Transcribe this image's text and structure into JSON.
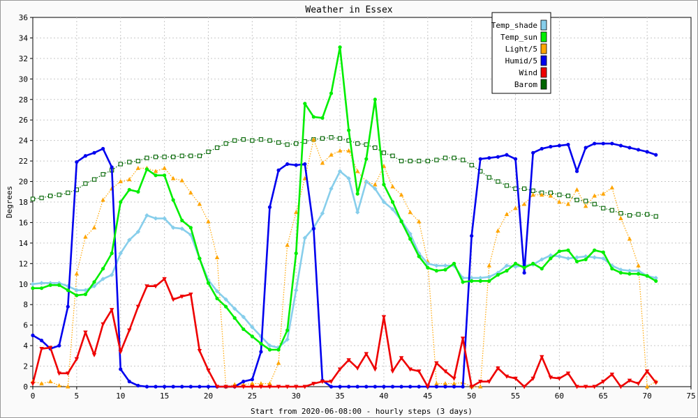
{
  "chart_data": {
    "type": "line",
    "title": "Weather in Essex",
    "xlabel": "Start from 2020-06-08:00 - hourly steps (3 days)",
    "ylabel": "Degrees",
    "xlim": [
      0,
      75
    ],
    "ylim": [
      0,
      36
    ],
    "xticks": [
      0,
      5,
      10,
      15,
      20,
      25,
      30,
      35,
      40,
      45,
      50,
      55,
      60,
      65,
      70,
      75
    ],
    "yticks": [
      0,
      2,
      4,
      6,
      8,
      10,
      12,
      14,
      16,
      18,
      20,
      22,
      24,
      26,
      28,
      30,
      32,
      34,
      36
    ],
    "grid": true,
    "legend_position": "top-right",
    "series": [
      {
        "name": "Temp_shade",
        "color": "#87ceeb",
        "marker": "diamond",
        "line": "solid",
        "values": [
          10.0,
          10.1,
          10.1,
          10.1,
          9.8,
          9.4,
          9.4,
          9.8,
          10.5,
          10.9,
          13.0,
          14.3,
          15.1,
          16.7,
          16.4,
          16.4,
          15.5,
          15.4,
          14.8,
          12.5,
          10.4,
          9.3,
          8.5,
          7.6,
          6.8,
          5.8,
          4.9,
          4.0,
          3.8,
          4.6,
          9.4,
          14.5,
          15.5,
          16.9,
          19.3,
          21.0,
          20.3,
          17.0,
          20.0,
          19.3,
          18.0,
          17.3,
          16.2,
          14.9,
          13.0,
          12.0,
          11.8,
          11.8,
          11.8,
          10.6,
          10.6,
          10.6,
          10.7,
          11.1,
          11.8,
          11.7,
          11.8,
          11.9,
          12.4,
          12.8,
          12.7,
          12.5,
          12.6,
          12.7,
          12.6,
          12.5,
          11.8,
          11.4,
          11.3,
          11.3,
          10.8,
          10.6
        ]
      },
      {
        "name": "Temp_sun",
        "color": "#00ee00",
        "marker": "circle",
        "line": "solid",
        "values": [
          9.6,
          9.6,
          9.9,
          9.9,
          9.4,
          8.9,
          9.0,
          10.2,
          11.5,
          13.0,
          18.0,
          19.2,
          19.0,
          21.2,
          20.6,
          20.6,
          18.2,
          16.2,
          15.5,
          12.5,
          10.1,
          8.6,
          7.8,
          6.7,
          5.6,
          4.9,
          4.2,
          3.6,
          3.6,
          5.5,
          13.0,
          27.6,
          26.3,
          26.2,
          28.6,
          33.1,
          25.0,
          18.8,
          22.2,
          28.0,
          19.7,
          18.0,
          16.1,
          14.4,
          12.7,
          11.6,
          11.3,
          11.4,
          12.0,
          10.2,
          10.3,
          10.3,
          10.3,
          10.9,
          11.3,
          12.0,
          11.6,
          12.0,
          11.5,
          12.5,
          13.2,
          13.3,
          12.2,
          12.4,
          13.3,
          13.1,
          11.5,
          11.1,
          11.0,
          11.0,
          10.8,
          10.3
        ]
      },
      {
        "name": "Light/5",
        "color": "#ffa500",
        "marker": "triangle",
        "line": "dotted",
        "values": [
          0.5,
          0.3,
          0.5,
          0.1,
          0.0,
          11.0,
          14.6,
          15.5,
          18.2,
          19.3,
          20.0,
          20.2,
          21.3,
          21.3,
          21.0,
          21.3,
          20.3,
          20.1,
          18.9,
          17.8,
          16.1,
          12.6,
          0.0,
          0.2,
          0.2,
          0.3,
          0.3,
          0.3,
          2.3,
          13.8,
          17.0,
          20.3,
          24.1,
          21.8,
          22.6,
          23.0,
          23.0,
          21.0,
          20.0,
          19.7,
          21.5,
          19.5,
          18.7,
          17.0,
          16.1,
          12.2,
          0.3,
          0.3,
          0.3,
          0.4,
          0.0,
          0.0,
          11.8,
          15.2,
          16.8,
          17.4,
          17.8,
          18.7,
          18.7,
          18.6,
          18.0,
          17.8,
          19.2,
          17.6,
          18.6,
          18.8,
          19.4,
          16.4,
          14.4,
          11.8,
          0.0,
          0.5
        ]
      },
      {
        "name": "Humid/5",
        "color": "#0000ee",
        "marker": "circle",
        "line": "solid",
        "values": [
          5.0,
          4.5,
          3.7,
          4.0,
          7.8,
          21.9,
          22.5,
          22.8,
          23.2,
          21.4,
          1.7,
          0.5,
          0.1,
          0.0,
          0.0,
          0.0,
          0.0,
          0.0,
          0.0,
          0.0,
          0.0,
          0.0,
          0.0,
          0.0,
          0.5,
          0.7,
          3.4,
          17.5,
          21.1,
          21.7,
          21.6,
          21.7,
          15.4,
          0.6,
          0.0,
          0.0,
          0.0,
          0.0,
          0.0,
          0.0,
          0.0,
          0.0,
          0.0,
          0.0,
          0.0,
          0.0,
          0.0,
          0.0,
          0.0,
          0.0,
          14.7,
          22.2,
          22.3,
          22.4,
          22.6,
          22.2,
          11.1,
          22.8,
          23.2,
          23.4,
          23.5,
          23.6,
          21.0,
          23.3,
          23.7,
          23.7,
          23.7,
          23.5,
          23.3,
          23.1,
          22.9,
          22.6
        ]
      },
      {
        "name": "Wind",
        "color": "#ee0000",
        "marker": "triangle-down",
        "line": "solid",
        "values": [
          0.3,
          3.7,
          3.8,
          1.3,
          1.3,
          2.7,
          5.3,
          3.1,
          6.1,
          7.5,
          3.4,
          5.5,
          7.8,
          9.8,
          9.8,
          10.5,
          8.5,
          8.8,
          9.0,
          3.5,
          1.6,
          0.0,
          0.0,
          0.0,
          0.0,
          0.0,
          0.0,
          0.0,
          0.0,
          0.0,
          0.0,
          0.0,
          0.3,
          0.5,
          0.5,
          1.7,
          2.6,
          1.8,
          3.2,
          1.7,
          6.8,
          1.5,
          2.8,
          1.7,
          1.5,
          0.0,
          2.3,
          1.5,
          0.8,
          4.7,
          0.0,
          0.5,
          0.5,
          1.8,
          1.0,
          0.8,
          0.0,
          0.8,
          2.9,
          0.9,
          0.8,
          1.3,
          0.0,
          0.0,
          0.0,
          0.5,
          1.2,
          0.0,
          0.6,
          0.3,
          1.5,
          0.4
        ]
      },
      {
        "name": "Barom",
        "color": "#006400",
        "marker": "square-open",
        "line": "dotted",
        "values": [
          18.3,
          18.4,
          18.6,
          18.7,
          18.9,
          19.2,
          19.8,
          20.2,
          20.7,
          21.1,
          21.7,
          21.9,
          22.0,
          22.3,
          22.4,
          22.4,
          22.4,
          22.5,
          22.5,
          22.5,
          22.9,
          23.3,
          23.7,
          24.0,
          24.1,
          24.0,
          24.1,
          24.0,
          23.8,
          23.6,
          23.7,
          23.9,
          24.1,
          24.2,
          24.3,
          24.2,
          24.0,
          23.7,
          23.6,
          23.3,
          22.8,
          22.5,
          22.0,
          22.0,
          22.0,
          22.0,
          22.1,
          22.3,
          22.3,
          22.1,
          21.6,
          21.0,
          20.4,
          20.0,
          19.6,
          19.3,
          19.3,
          19.1,
          18.9,
          18.9,
          18.7,
          18.6,
          18.2,
          18.1,
          17.8,
          17.4,
          17.2,
          16.9,
          16.7,
          16.8,
          16.8,
          16.6
        ]
      }
    ]
  }
}
